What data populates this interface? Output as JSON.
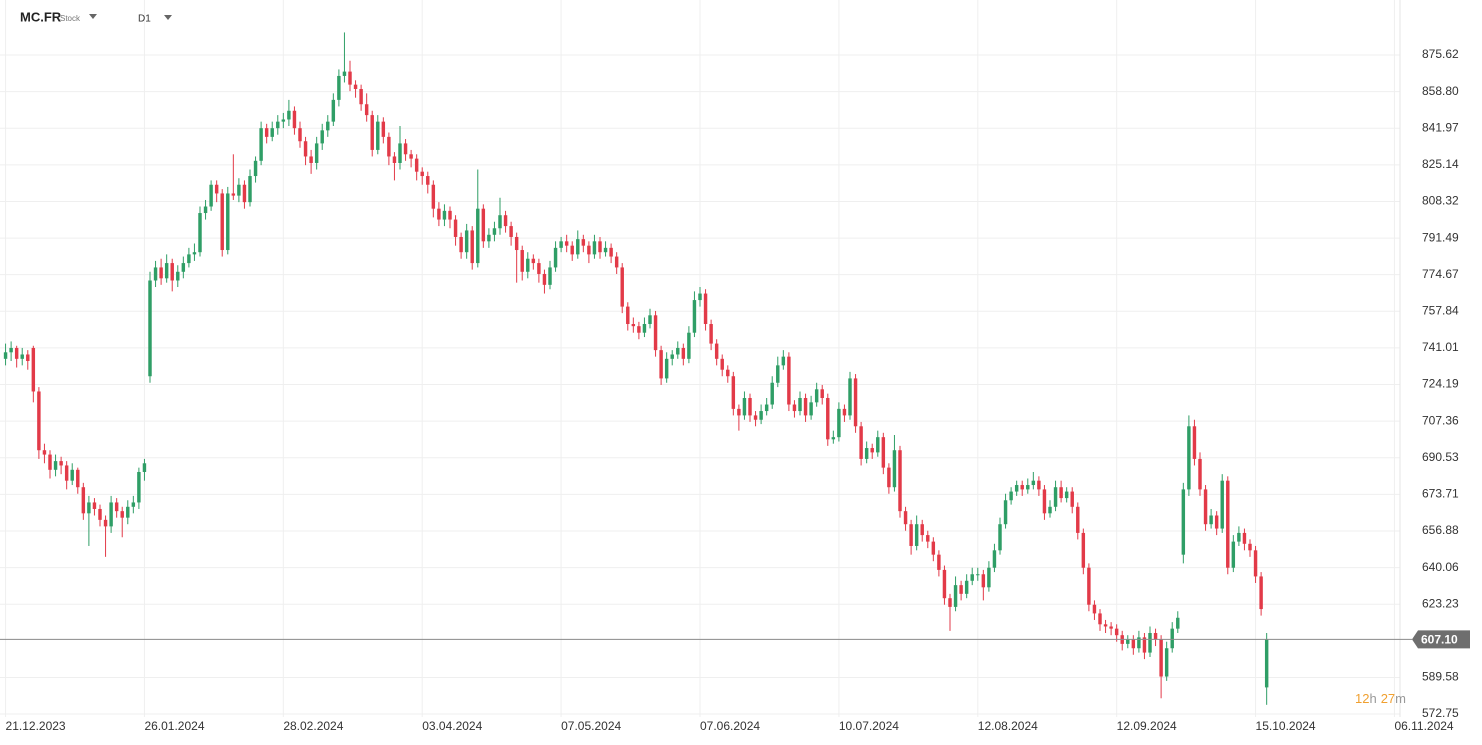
{
  "header": {
    "symbol": "MC.FR",
    "kind": "Stock",
    "timeframe": "D1"
  },
  "countdown": [
    {
      "value": "12",
      "unit": "h"
    },
    {
      "value": "27",
      "unit": "m"
    }
  ],
  "chart_data": {
    "type": "candlestick",
    "up_color": "#2f9e66",
    "down_color": "#e23a48",
    "current_price": 607.1,
    "current_price_label": "607.10",
    "xlim": [
      -1,
      251
    ],
    "ylim": [
      571.4,
      900.9
    ],
    "grid": true,
    "xticks": [
      {
        "value": 0,
        "label": "21.12.2023"
      },
      {
        "value": 25,
        "label": "26.01.2024"
      },
      {
        "value": 50,
        "label": "28.02.2024"
      },
      {
        "value": 75,
        "label": "03.04.2024"
      },
      {
        "value": 100,
        "label": "07.05.2024"
      },
      {
        "value": 125,
        "label": "07.06.2024"
      },
      {
        "value": 150,
        "label": "10.07.2024"
      },
      {
        "value": 175,
        "label": "12.08.2024"
      },
      {
        "value": 200,
        "label": "12.09.2024"
      },
      {
        "value": 225,
        "label": "15.10.2024"
      },
      {
        "value": 250,
        "label": "06.11.2024"
      }
    ],
    "yticks": [
      572.75,
      589.58,
      623.23,
      640.06,
      656.88,
      673.71,
      690.53,
      707.36,
      724.19,
      741.01,
      757.84,
      774.67,
      791.49,
      808.32,
      825.14,
      841.97,
      {
        "value": 858.8,
        "label": "858.80"
      },
      875.62
    ],
    "candles": [
      [
        736,
        743,
        733,
        739
      ],
      [
        739,
        744,
        735,
        741
      ],
      [
        741,
        742,
        732,
        736
      ],
      [
        736,
        741,
        733,
        738
      ],
      [
        738,
        740,
        731,
        735
      ],
      [
        741,
        742,
        716,
        721
      ],
      [
        721,
        723,
        690,
        694
      ],
      [
        694,
        697,
        688,
        692
      ],
      [
        692,
        694,
        681,
        685
      ],
      [
        685,
        692,
        682,
        689
      ],
      [
        689,
        691,
        683,
        687
      ],
      [
        687,
        689,
        676,
        680
      ],
      [
        680,
        688,
        678,
        685
      ],
      [
        685,
        686,
        674,
        677
      ],
      [
        677,
        679,
        662,
        665
      ],
      [
        665,
        673,
        650,
        670
      ],
      [
        670,
        672,
        664,
        667
      ],
      [
        667,
        669,
        659,
        662
      ],
      [
        662,
        664,
        645,
        659
      ],
      [
        659,
        673,
        656,
        670
      ],
      [
        670,
        672,
        663,
        666
      ],
      [
        666,
        668,
        654,
        663
      ],
      [
        663,
        671,
        660,
        668
      ],
      [
        668,
        673,
        665,
        670
      ],
      [
        670,
        686,
        667,
        684
      ],
      [
        684,
        690,
        680,
        688
      ],
      [
        728,
        776,
        725,
        772
      ],
      [
        772,
        781,
        769,
        778
      ],
      [
        778,
        782,
        770,
        773
      ],
      [
        773,
        784,
        771,
        780
      ],
      [
        780,
        782,
        767,
        772
      ],
      [
        772,
        779,
        769,
        776
      ],
      [
        776,
        783,
        773,
        780
      ],
      [
        780,
        787,
        778,
        784
      ],
      [
        784,
        789,
        781,
        785
      ],
      [
        785,
        806,
        783,
        803
      ],
      [
        803,
        809,
        800,
        806
      ],
      [
        806,
        818,
        804,
        816
      ],
      [
        816,
        818,
        808,
        812
      ],
      [
        812,
        814,
        783,
        786
      ],
      [
        786,
        815,
        784,
        812
      ],
      [
        812,
        830,
        809,
        811
      ],
      [
        811,
        819,
        808,
        816
      ],
      [
        816,
        818,
        805,
        808
      ],
      [
        808,
        823,
        806,
        820
      ],
      [
        820,
        829,
        817,
        827
      ],
      [
        827,
        845,
        825,
        842
      ],
      [
        842,
        844,
        835,
        838
      ],
      [
        838,
        845,
        836,
        842
      ],
      [
        842,
        848,
        839,
        845
      ],
      [
        845,
        849,
        842,
        846
      ],
      [
        846,
        855,
        843,
        850
      ],
      [
        850,
        852,
        839,
        842
      ],
      [
        842,
        845,
        833,
        836
      ],
      [
        836,
        838,
        825,
        829
      ],
      [
        829,
        832,
        821,
        826
      ],
      [
        826,
        838,
        823,
        835
      ],
      [
        835,
        844,
        832,
        841
      ],
      [
        841,
        848,
        838,
        845
      ],
      [
        845,
        858,
        843,
        855
      ],
      [
        855,
        869,
        852,
        866
      ],
      [
        866,
        886,
        863,
        868
      ],
      [
        868,
        873,
        859,
        862
      ],
      [
        862,
        864,
        856,
        860
      ],
      [
        860,
        862,
        850,
        853
      ],
      [
        853,
        858,
        845,
        848
      ],
      [
        848,
        850,
        829,
        832
      ],
      [
        832,
        848,
        830,
        845
      ],
      [
        845,
        847,
        835,
        838
      ],
      [
        838,
        840,
        825,
        829
      ],
      [
        829,
        831,
        818,
        826
      ],
      [
        826,
        843,
        823,
        835
      ],
      [
        835,
        837,
        827,
        830
      ],
      [
        830,
        832,
        824,
        828
      ],
      [
        828,
        830,
        818,
        822
      ],
      [
        822,
        824,
        816,
        820
      ],
      [
        820,
        822,
        812,
        816
      ],
      [
        816,
        818,
        801,
        805
      ],
      [
        805,
        808,
        797,
        800
      ],
      [
        800,
        807,
        797,
        804
      ],
      [
        804,
        806,
        796,
        800
      ],
      [
        800,
        802,
        788,
        792
      ],
      [
        792,
        794,
        782,
        785
      ],
      [
        785,
        798,
        782,
        795
      ],
      [
        795,
        797,
        777,
        780
      ],
      [
        780,
        823,
        778,
        805
      ],
      [
        805,
        807,
        787,
        790
      ],
      [
        790,
        796,
        787,
        793
      ],
      [
        793,
        799,
        790,
        796
      ],
      [
        796,
        810,
        793,
        802
      ],
      [
        802,
        804,
        794,
        797
      ],
      [
        797,
        799,
        788,
        792
      ],
      [
        792,
        794,
        771,
        786
      ],
      [
        786,
        788,
        772,
        776
      ],
      [
        776,
        785,
        773,
        782
      ],
      [
        782,
        784,
        777,
        780
      ],
      [
        780,
        782,
        771,
        775
      ],
      [
        775,
        777,
        766,
        770
      ],
      [
        770,
        781,
        768,
        778
      ],
      [
        778,
        790,
        776,
        787
      ],
      [
        787,
        792,
        785,
        790
      ],
      [
        790,
        793,
        785,
        788
      ],
      [
        788,
        790,
        781,
        784
      ],
      [
        784,
        795,
        782,
        791
      ],
      [
        791,
        793,
        785,
        788
      ],
      [
        788,
        790,
        780,
        784
      ],
      [
        784,
        793,
        782,
        790
      ],
      [
        790,
        792,
        782,
        785
      ],
      [
        785,
        790,
        783,
        787
      ],
      [
        787,
        789,
        780,
        783
      ],
      [
        783,
        785,
        775,
        778
      ],
      [
        778,
        780,
        757,
        760
      ],
      [
        760,
        762,
        749,
        752
      ],
      [
        752,
        755,
        748,
        751
      ],
      [
        751,
        753,
        745,
        748
      ],
      [
        748,
        755,
        746,
        752
      ],
      [
        752,
        759,
        750,
        756
      ],
      [
        756,
        758,
        737,
        740
      ],
      [
        740,
        742,
        724,
        727
      ],
      [
        727,
        739,
        725,
        736
      ],
      [
        736,
        740,
        733,
        738
      ],
      [
        738,
        744,
        736,
        741
      ],
      [
        741,
        743,
        733,
        736
      ],
      [
        736,
        751,
        734,
        748
      ],
      [
        748,
        767,
        746,
        763
      ],
      [
        763,
        769,
        760,
        766
      ],
      [
        766,
        768,
        749,
        752
      ],
      [
        752,
        754,
        740,
        743
      ],
      [
        743,
        745,
        733,
        736
      ],
      [
        736,
        738,
        728,
        731
      ],
      [
        731,
        733,
        725,
        728
      ],
      [
        728,
        730,
        710,
        713
      ],
      [
        713,
        715,
        703,
        710
      ],
      [
        710,
        721,
        708,
        718
      ],
      [
        718,
        720,
        707,
        710
      ],
      [
        710,
        712,
        705,
        708
      ],
      [
        708,
        715,
        706,
        712
      ],
      [
        712,
        718,
        710,
        715
      ],
      [
        715,
        728,
        713,
        725
      ],
      [
        725,
        737,
        723,
        733
      ],
      [
        733,
        740,
        731,
        737
      ],
      [
        737,
        739,
        712,
        715
      ],
      [
        715,
        717,
        709,
        712
      ],
      [
        712,
        721,
        710,
        718
      ],
      [
        718,
        720,
        707,
        710
      ],
      [
        710,
        719,
        708,
        716
      ],
      [
        716,
        725,
        714,
        722
      ],
      [
        722,
        724,
        715,
        718
      ],
      [
        718,
        720,
        696,
        699
      ],
      [
        699,
        703,
        697,
        700
      ],
      [
        700,
        716,
        698,
        713
      ],
      [
        713,
        715,
        707,
        710
      ],
      [
        710,
        730,
        708,
        727
      ],
      [
        727,
        729,
        702,
        705
      ],
      [
        705,
        707,
        687,
        690
      ],
      [
        690,
        698,
        688,
        695
      ],
      [
        695,
        697,
        690,
        693
      ],
      [
        693,
        703,
        691,
        700
      ],
      [
        700,
        702,
        683,
        686
      ],
      [
        686,
        688,
        674,
        677
      ],
      [
        677,
        701,
        675,
        694
      ],
      [
        694,
        696,
        663,
        666
      ],
      [
        666,
        668,
        657,
        660
      ],
      [
        660,
        662,
        646,
        650
      ],
      [
        650,
        664,
        648,
        660
      ],
      [
        660,
        662,
        652,
        655
      ],
      [
        655,
        657,
        649,
        652
      ],
      [
        652,
        654,
        643,
        646
      ],
      [
        646,
        648,
        636,
        639
      ],
      [
        639,
        641,
        623,
        626
      ],
      [
        626,
        628,
        611,
        622
      ],
      [
        622,
        636,
        620,
        632
      ],
      [
        632,
        634,
        625,
        628
      ],
      [
        628,
        637,
        626,
        634
      ],
      [
        634,
        640,
        632,
        637
      ],
      [
        637,
        640,
        634,
        637
      ],
      [
        637,
        639,
        625,
        631
      ],
      [
        631,
        643,
        629,
        640
      ],
      [
        640,
        651,
        638,
        648
      ],
      [
        648,
        663,
        646,
        660
      ],
      [
        660,
        674,
        658,
        671
      ],
      [
        671,
        677,
        669,
        675
      ],
      [
        675,
        680,
        673,
        678
      ],
      [
        678,
        680,
        673,
        676
      ],
      [
        676,
        681,
        674,
        678
      ],
      [
        678,
        684,
        676,
        680
      ],
      [
        680,
        682,
        673,
        676
      ],
      [
        676,
        678,
        662,
        665
      ],
      [
        665,
        671,
        663,
        668
      ],
      [
        668,
        680,
        666,
        677
      ],
      [
        677,
        680,
        670,
        672
      ],
      [
        672,
        677,
        670,
        675
      ],
      [
        675,
        677,
        665,
        668
      ],
      [
        668,
        670,
        653,
        656
      ],
      [
        656,
        658,
        637,
        640
      ],
      [
        640,
        642,
        620,
        623
      ],
      [
        623,
        625,
        616,
        619
      ],
      [
        619,
        621,
        611,
        614
      ],
      [
        614,
        616,
        610,
        613
      ],
      [
        613,
        615,
        609,
        612
      ],
      [
        612,
        614,
        606,
        609
      ],
      [
        609,
        611,
        602,
        605
      ],
      [
        605,
        609,
        603,
        607
      ],
      [
        607,
        609,
        600,
        603
      ],
      [
        603,
        611,
        601,
        608
      ],
      [
        608,
        610,
        598,
        601
      ],
      [
        601,
        613,
        599,
        610
      ],
      [
        610,
        612,
        604,
        607
      ],
      [
        607,
        609,
        580,
        590
      ],
      [
        590,
        606,
        588,
        603
      ],
      [
        603,
        615,
        601,
        612
      ],
      [
        612,
        620,
        610,
        617
      ],
      [
        646,
        679,
        642,
        676
      ],
      [
        676,
        710,
        673,
        705
      ],
      [
        705,
        708,
        687,
        690
      ],
      [
        690,
        693,
        673,
        676
      ],
      [
        676,
        678,
        657,
        660
      ],
      [
        660,
        667,
        658,
        664
      ],
      [
        664,
        666,
        655,
        658
      ],
      [
        658,
        683,
        656,
        680
      ],
      [
        680,
        682,
        637,
        640
      ],
      [
        640,
        655,
        638,
        652
      ],
      [
        652,
        659,
        650,
        656
      ],
      [
        656,
        658,
        648,
        651
      ],
      [
        651,
        653,
        645,
        648
      ],
      [
        648,
        650,
        633,
        636
      ],
      [
        636,
        638,
        618,
        621
      ],
      [
        585,
        610,
        577,
        607
      ]
    ]
  }
}
